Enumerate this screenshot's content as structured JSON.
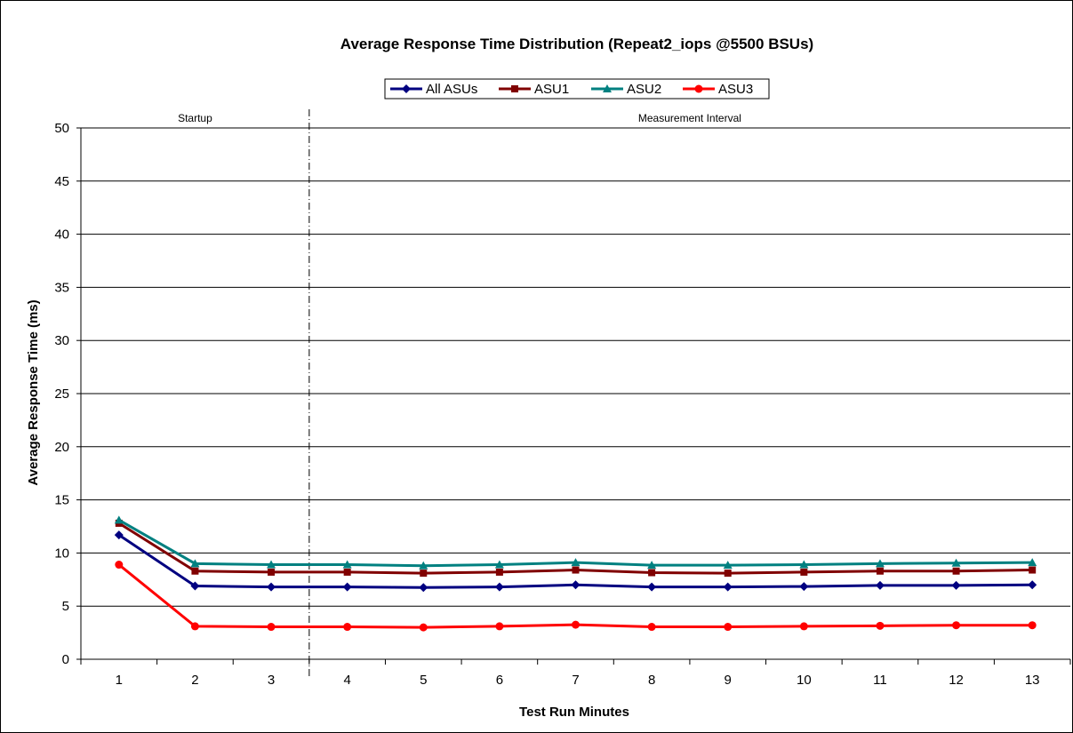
{
  "chart_data": {
    "type": "line",
    "title": "Average Response Time Distribution (Repeat2_iops @5500 BSUs)",
    "xlabel": "Test Run Minutes",
    "ylabel": "Average Response Time (ms)",
    "x": [
      "1",
      "2",
      "3",
      "4",
      "5",
      "6",
      "7",
      "8",
      "9",
      "10",
      "11",
      "12",
      "13"
    ],
    "ylim": [
      0,
      50
    ],
    "yticks": [
      "0",
      "5",
      "10",
      "15",
      "20",
      "25",
      "30",
      "35",
      "40",
      "45",
      "50"
    ],
    "grid": "horizontal",
    "legend_position": "top",
    "regions": [
      {
        "label": "Startup",
        "from_x": 1,
        "to_x": 3
      },
      {
        "label": "Measurement Interval",
        "from_x": 4,
        "to_x": 13
      }
    ],
    "divider_after_x": 3,
    "series": [
      {
        "name": "All ASUs",
        "color": "#000080",
        "marker": "diamond",
        "values": [
          11.7,
          6.9,
          6.8,
          6.8,
          6.75,
          6.8,
          7.0,
          6.8,
          6.8,
          6.85,
          6.95,
          6.95,
          7.0
        ]
      },
      {
        "name": "ASU1",
        "color": "#800000",
        "marker": "square",
        "values": [
          12.8,
          8.3,
          8.2,
          8.2,
          8.1,
          8.2,
          8.4,
          8.15,
          8.1,
          8.2,
          8.3,
          8.3,
          8.4
        ]
      },
      {
        "name": "ASU2",
        "color": "#008080",
        "marker": "triangle",
        "values": [
          13.1,
          9.0,
          8.9,
          8.9,
          8.8,
          8.9,
          9.1,
          8.85,
          8.85,
          8.9,
          9.0,
          9.05,
          9.1
        ]
      },
      {
        "name": "ASU3",
        "color": "#ff0000",
        "marker": "circle",
        "values": [
          8.9,
          3.1,
          3.05,
          3.05,
          3.0,
          3.1,
          3.25,
          3.05,
          3.05,
          3.1,
          3.15,
          3.2,
          3.2
        ]
      }
    ]
  }
}
